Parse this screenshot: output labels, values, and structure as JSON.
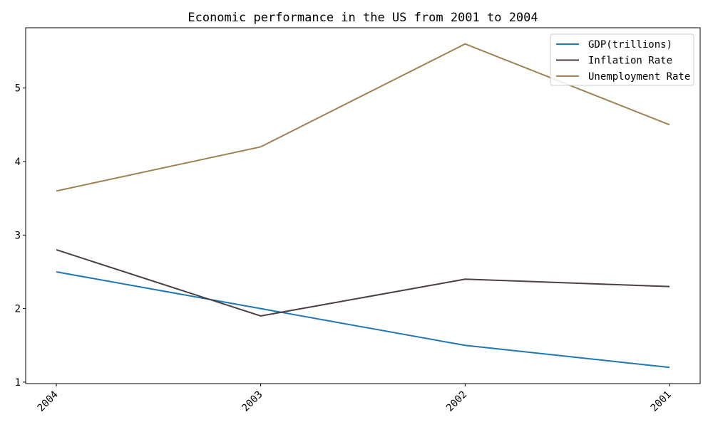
{
  "chart_data": {
    "type": "line",
    "title": "Economic performance in the US from 2001 to 2004",
    "xlabel": "",
    "ylabel": "",
    "categories": [
      "2004",
      "2003",
      "2002",
      "2001"
    ],
    "ylim": [
      0.98,
      5.82
    ],
    "yticks": [
      1,
      2,
      3,
      4,
      5
    ],
    "grid": false,
    "legend_position": "top-right",
    "series": [
      {
        "name": "GDP(trillions)",
        "color": "#1f77b4",
        "values": [
          2.5,
          2.0,
          1.5,
          1.2
        ]
      },
      {
        "name": "Inflation Rate",
        "color": "#4b3f40",
        "values": [
          2.8,
          1.9,
          2.4,
          2.3
        ]
      },
      {
        "name": "Unemployment Rate",
        "color": "#9b8352",
        "values": [
          3.6,
          4.2,
          5.6,
          4.5
        ]
      }
    ]
  }
}
